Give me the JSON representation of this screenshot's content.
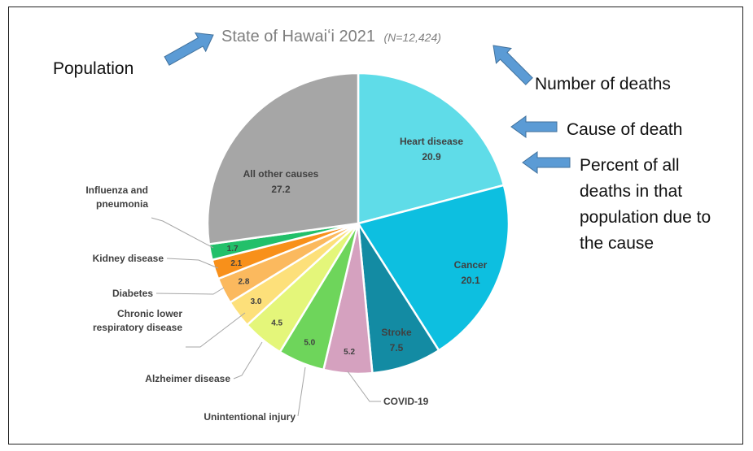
{
  "chart_data": {
    "type": "pie",
    "title": "State of Hawaiʻi 2021",
    "subtitle": "(N=12,424)",
    "slices": [
      {
        "label": "Heart disease",
        "value": 20.9,
        "color": "#5fdce8",
        "label_style": "inside"
      },
      {
        "label": "Cancer",
        "value": 20.1,
        "color": "#0dbfe0",
        "label_style": "inside"
      },
      {
        "label": "Stroke",
        "value": 7.5,
        "color": "#138ba3",
        "label_style": "inside"
      },
      {
        "label": "COVID-19",
        "value": 5.2,
        "color": "#d5a1bf",
        "label_style": "callout"
      },
      {
        "label": "Unintentional injury",
        "value": 5.0,
        "color": "#6ed55b",
        "label_style": "callout"
      },
      {
        "label": "Alzheimer disease",
        "value": 4.5,
        "color": "#e4f67a",
        "label_style": "callout"
      },
      {
        "label": "Chronic lower\nrespiratory disease",
        "value": 3.0,
        "color": "#fde07a",
        "label_style": "callout"
      },
      {
        "label": "Diabetes",
        "value": 2.8,
        "color": "#fbb95e",
        "label_style": "callout"
      },
      {
        "label": "Kidney disease",
        "value": 2.1,
        "color": "#f8901a",
        "label_style": "callout"
      },
      {
        "label": "Influenza and\npneumonia",
        "value": 1.7,
        "color": "#22c06a",
        "label_style": "callout"
      },
      {
        "label": "All other causes",
        "value": 27.2,
        "color": "#a6a6a6",
        "label_style": "inside"
      }
    ]
  },
  "annotations": {
    "population": "Population",
    "number_of_deaths": "Number of deaths",
    "cause_of_death": "Cause of death",
    "percent_lines": [
      "Percent of all",
      "deaths in that",
      "population due to",
      "the cause"
    ],
    "arrow_color": "#5b9bd5"
  }
}
